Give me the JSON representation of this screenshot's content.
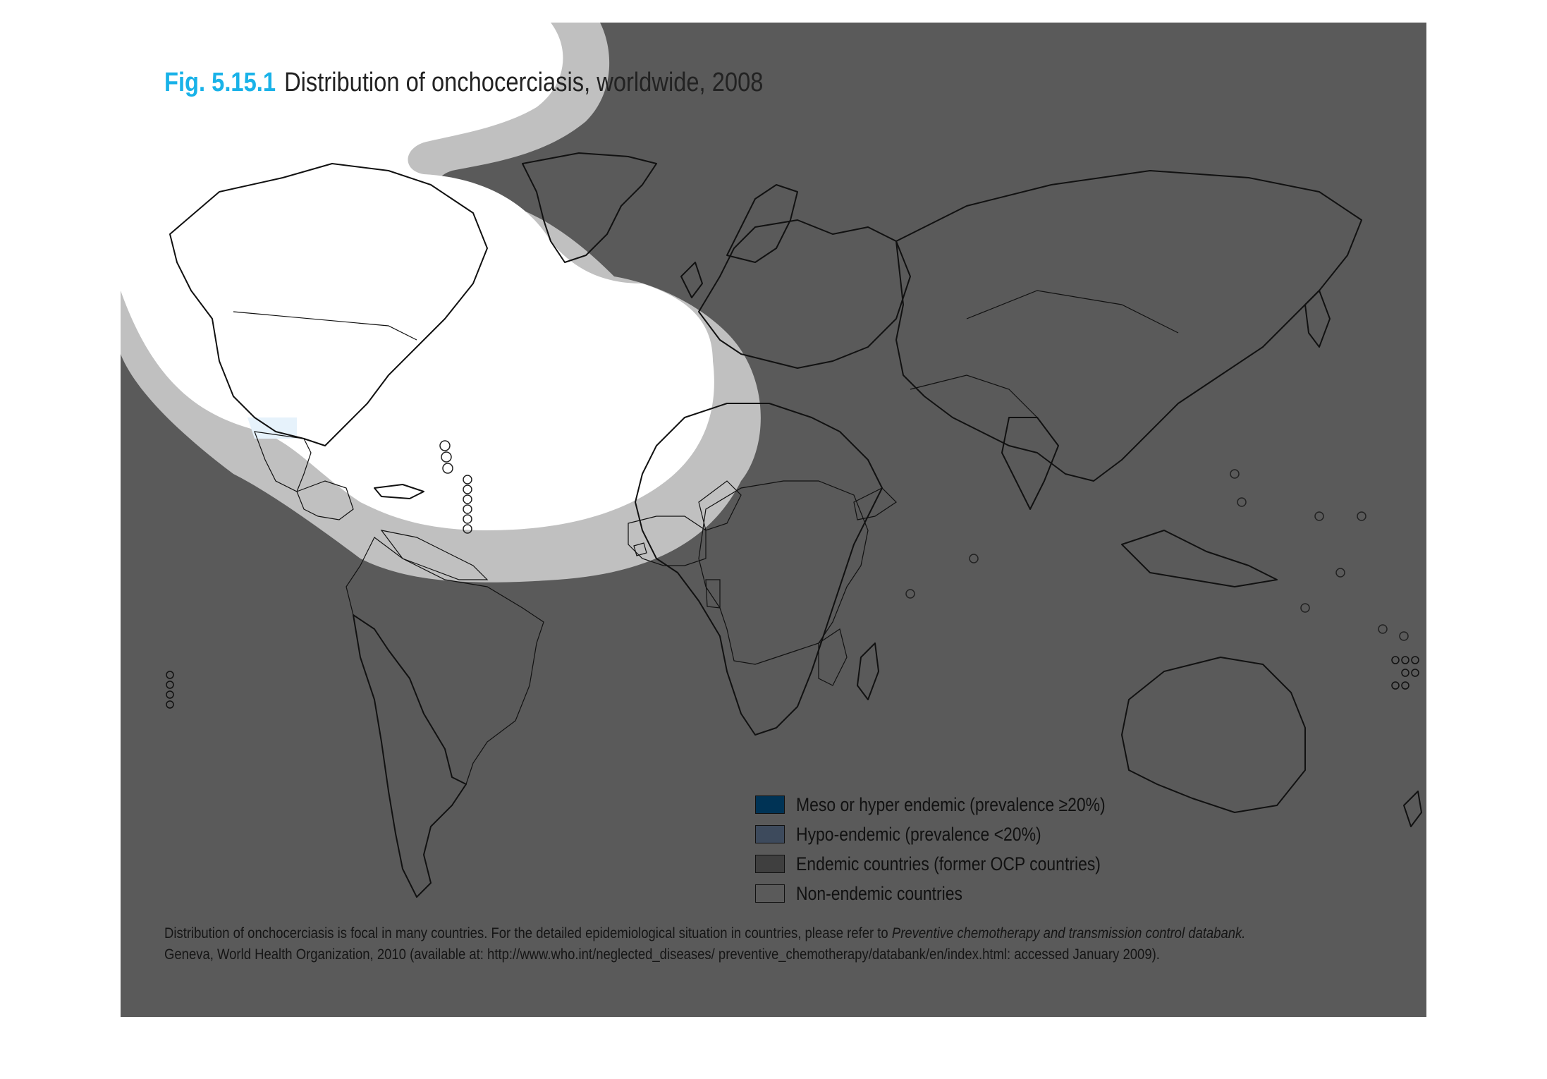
{
  "figure": {
    "number": "Fig. 5.15.1",
    "title": "Distribution of onchocerciasis, worldwide, 2008"
  },
  "legend": {
    "items": [
      {
        "label": "Meso or hyper endemic (prevalence ≥20%)",
        "color": "#003355"
      },
      {
        "label": "Hypo-endemic (prevalence <20%)",
        "color": "#3d4a5c"
      },
      {
        "label": "Endemic countries (former OCP countries)",
        "color": "#3f3f3f"
      },
      {
        "label": "Non-endemic countries",
        "color": "#5a5a5a"
      }
    ]
  },
  "footnote": {
    "line1_plain": "Distribution of onchocerciasis is focal in many countries. For the detailed epidemiological situation in countries, please refer to ",
    "line1_italic": "Preventive chemotherapy and transmission control databank.",
    "line2": "Geneva, World Health Organization, 2010 (available at: http://www.who.int/neglected_diseases/ preventive_chemotherapy/databank/en/index.html: accessed January 2009)."
  },
  "colors": {
    "background": "#5a5a5a",
    "mask_white": "#ffffff",
    "mask_grey": "#c0c0c0",
    "meso_hyper": "#003355",
    "hypo": "#3d4a5c",
    "ocp": "#3f3f3f",
    "light_blue": "#7a8aa8",
    "title_accent": "#19b2e8"
  }
}
